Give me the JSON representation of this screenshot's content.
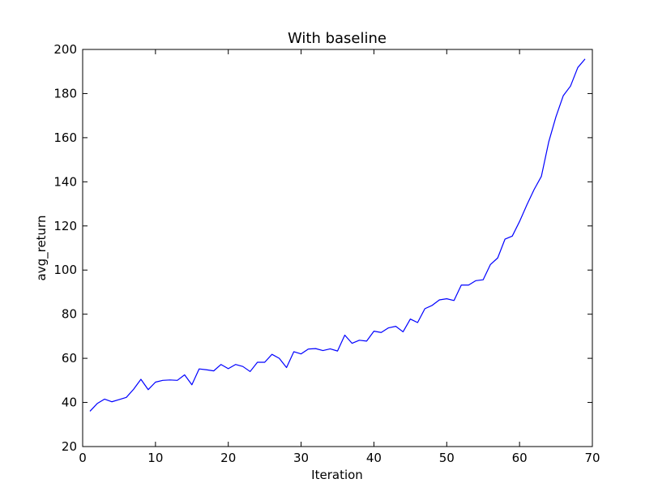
{
  "chart_data": {
    "type": "line",
    "title": "With baseline",
    "xlabel": "Iteration",
    "ylabel": "avg_return",
    "xlim": [
      0,
      70
    ],
    "ylim": [
      20,
      200
    ],
    "xticks": [
      0,
      10,
      20,
      30,
      40,
      50,
      60,
      70
    ],
    "yticks": [
      20,
      40,
      60,
      80,
      100,
      120,
      140,
      160,
      180,
      200
    ],
    "grid": false,
    "colors": {
      "line": "#0000ff"
    },
    "series": [
      {
        "x": [
          1,
          2,
          3,
          4,
          5,
          6,
          7,
          8,
          9,
          10,
          11,
          12,
          13,
          14,
          15,
          16,
          17,
          18,
          19,
          20,
          21,
          22,
          23,
          24,
          25,
          26,
          27,
          28,
          29,
          30,
          31,
          32,
          33,
          34,
          35,
          36,
          37,
          38,
          39,
          40,
          41,
          42,
          43,
          44,
          45,
          46,
          47,
          48,
          49,
          50,
          51,
          52,
          53,
          54,
          55,
          56,
          57,
          58,
          59,
          60,
          61,
          62,
          63,
          64,
          65,
          66,
          67,
          68,
          69
        ],
        "values": [
          36,
          39.5,
          41.5,
          40.3,
          41.3,
          42.3,
          46,
          50.5,
          45.8,
          49.2,
          50,
          50.2,
          50,
          52.5,
          48,
          55.2,
          54.8,
          54.3,
          57.2,
          55.3,
          57.2,
          56.3,
          54,
          58.2,
          58.2,
          61.8,
          60,
          55.8,
          63,
          62,
          64.2,
          64.4,
          63.5,
          64.3,
          63.3,
          70.5,
          66.8,
          68.2,
          67.8,
          72.3,
          71.7,
          73.8,
          74.5,
          72,
          77.8,
          76.2,
          82.5,
          84,
          86.5,
          87,
          86.2,
          93.2,
          93.2,
          95.2,
          95.6,
          102.5,
          105.5,
          114,
          115.4,
          122,
          129.5,
          136.5,
          142.5,
          158,
          169.5,
          179,
          183.4,
          191.8,
          195.7
        ]
      }
    ]
  }
}
